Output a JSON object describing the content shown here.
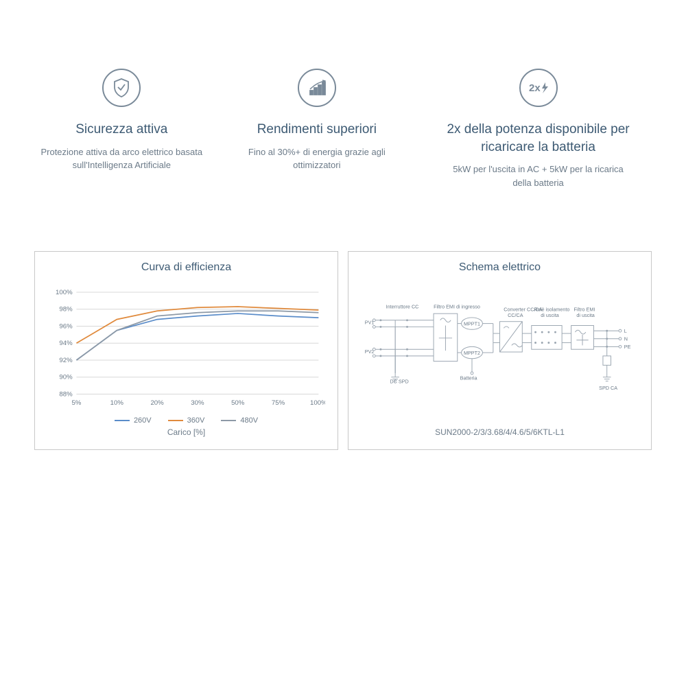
{
  "features": [
    {
      "title": "Sicurezza attiva",
      "desc": "Protezione attiva da arco elettrico basata sull'Intelligenza Artificiale"
    },
    {
      "title": "Rendimenti superiori",
      "desc": "Fino al 30%+ di energia grazie agli ottimizzatori"
    },
    {
      "title": "2x della potenza disponibile per ricaricare la batteria",
      "desc": "5kW per l'uscita in AC + 5kW per la ricarica della batteria"
    }
  ],
  "efficiency_chart": {
    "title": "Curva di efficienza",
    "type": "line",
    "x_label": "Carico [%]",
    "x_ticks": [
      "5%",
      "10%",
      "20%",
      "30%",
      "50%",
      "75%",
      "100%"
    ],
    "y_ticks": [
      "88%",
      "90%",
      "92%",
      "94%",
      "96%",
      "98%",
      "100%"
    ],
    "ylim": [
      88,
      100
    ],
    "grid_color": "#d8d8d8",
    "label_fontsize": 10,
    "label_color": "#6b7a88",
    "series": [
      {
        "name": "260V",
        "color": "#5a8cc9",
        "values": [
          92.0,
          95.5,
          96.8,
          97.2,
          97.5,
          97.2,
          97.0
        ]
      },
      {
        "name": "360V",
        "color": "#e08a3c",
        "values": [
          94.0,
          96.8,
          97.8,
          98.2,
          98.3,
          98.1,
          97.9
        ]
      },
      {
        "name": "480V",
        "color": "#8d99a6",
        "values": [
          92.0,
          95.5,
          97.2,
          97.6,
          97.8,
          97.8,
          97.6
        ]
      }
    ]
  },
  "schematic": {
    "title": "Schema elettrico",
    "caption": "SUN2000-2/3/3.68/4/4.6/5/6KTL-L1",
    "line_color": "#9aa5b0",
    "text_color": "#6b7a88",
    "box_border": "#9aa5b0",
    "labels": {
      "interruttore": "Interruttore CC",
      "filtro_in": "Filtro EMI di ingresso",
      "pv1": "PV1",
      "pv2": "PV2",
      "dc_spd": "DC SPD",
      "mppt1": "MPPT1",
      "mppt2": "MPPT2",
      "batteria": "Batteria",
      "converter": "Converter CC/CA",
      "rele": "Relè isolamento di uscita",
      "filtro_out": "Filtro EMI di uscita",
      "L": "L",
      "N": "N",
      "PE": "PE",
      "spd_ca": "SPD CA"
    }
  }
}
